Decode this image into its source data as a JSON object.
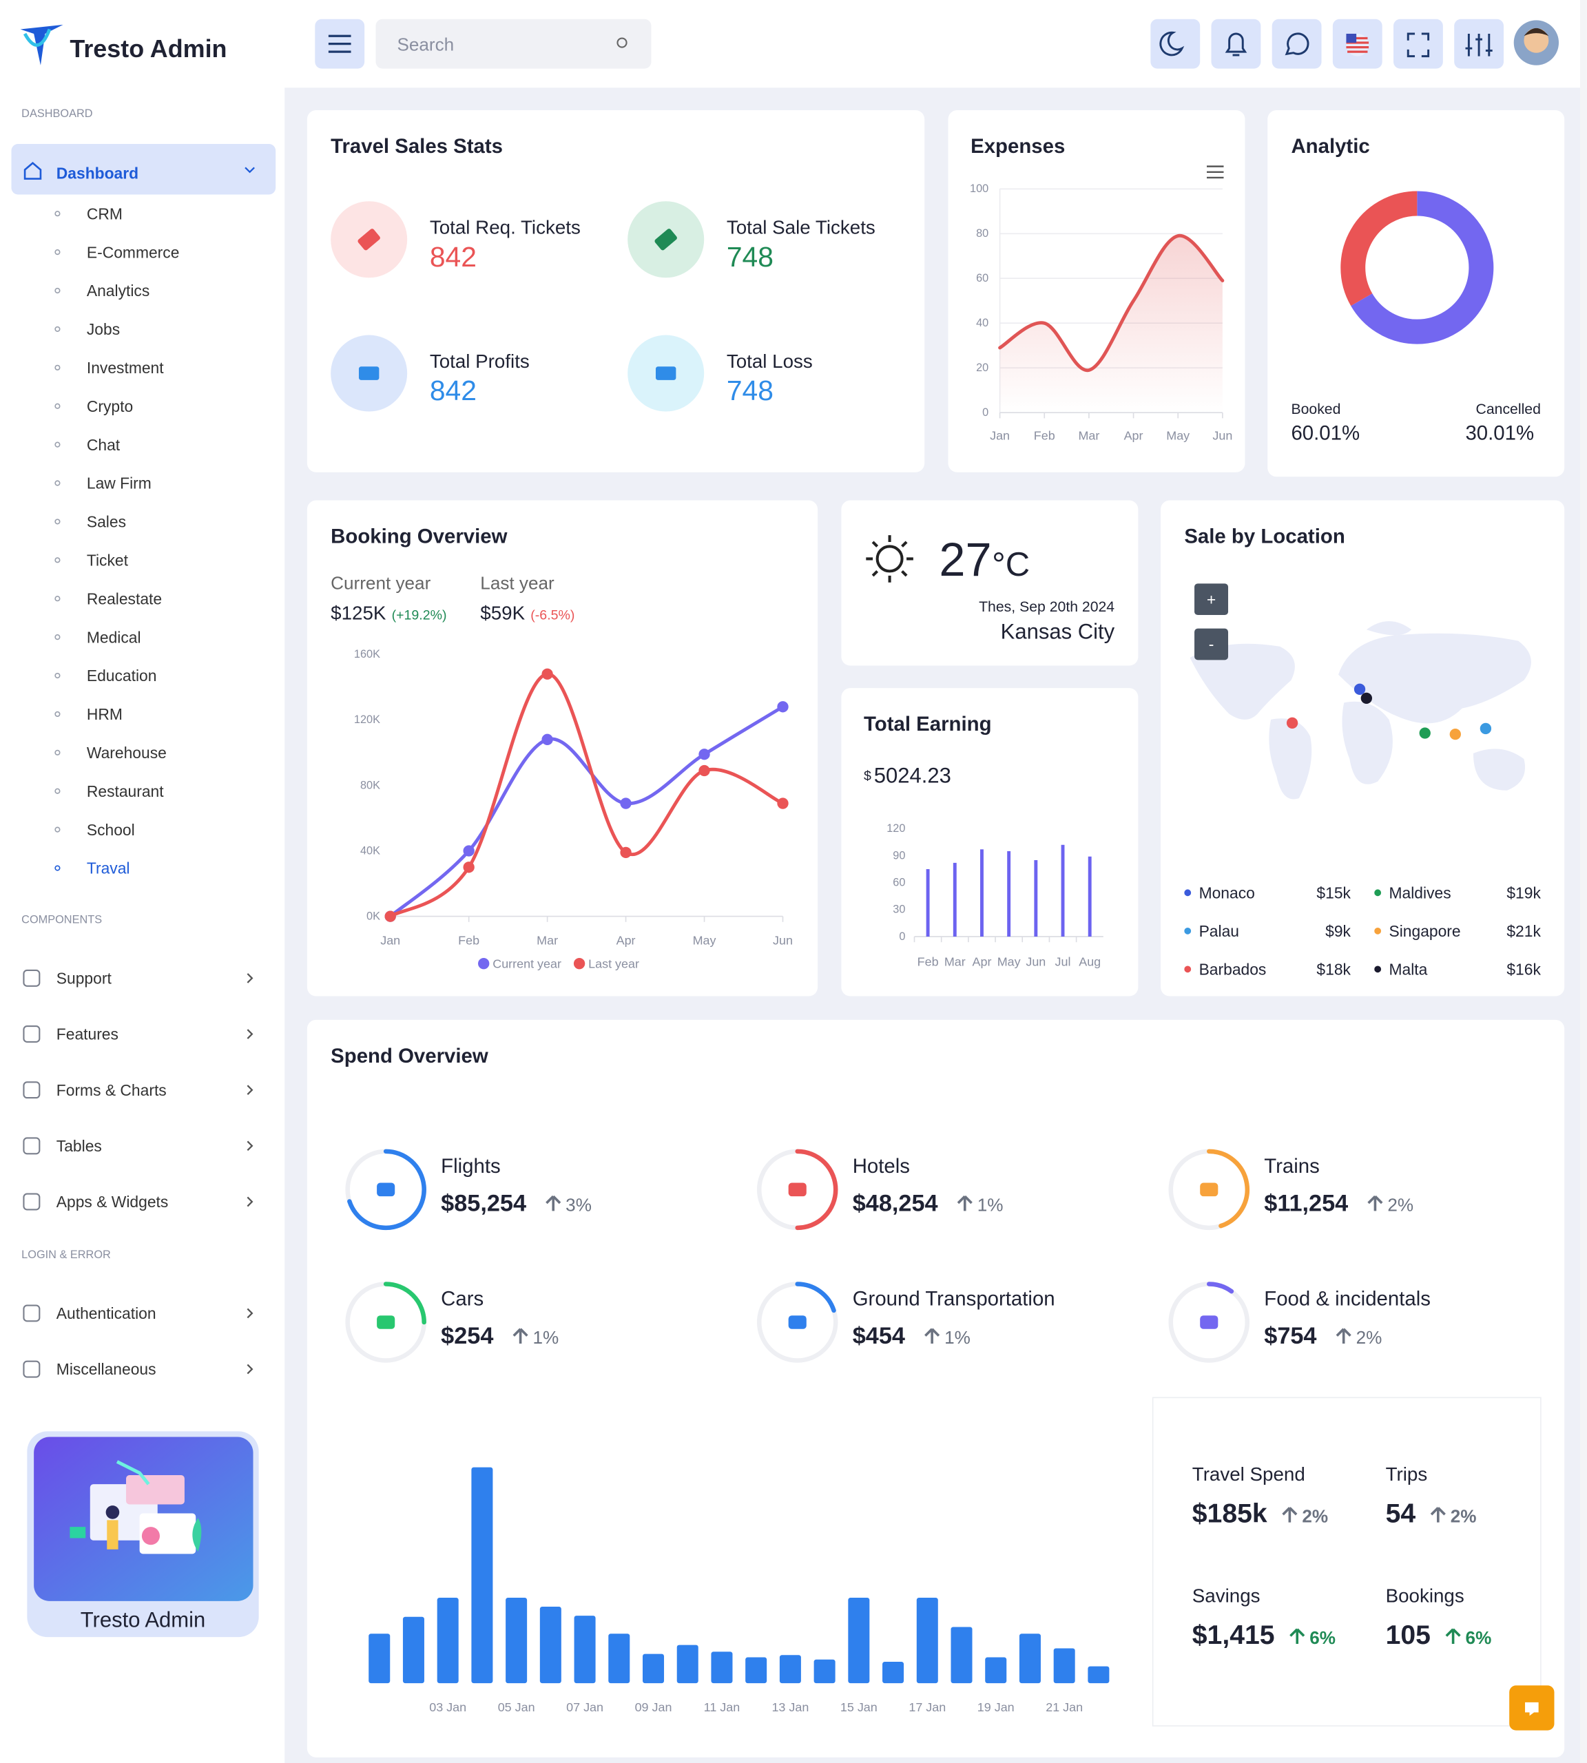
{
  "header": {
    "brand": "Tresto Admin",
    "search": "Search"
  },
  "sidebar": {
    "dashboard_heading": "DASHBOARD",
    "dashboard": "Dashboard",
    "dashboard_items": [
      "CRM",
      "E-Commerce",
      "Analytics",
      "Jobs",
      "Investment",
      "Crypto",
      "Chat",
      "Law Firm",
      "Sales",
      "Ticket",
      "Realestate",
      "Medical",
      "Education",
      "HRM",
      "Warehouse",
      "Restaurant",
      "School",
      "Traval"
    ],
    "components_heading": "COMPONENTS",
    "components": [
      "Support",
      "Features",
      "Forms & Charts",
      "Tables",
      "Apps & Widgets"
    ],
    "login_heading": "LOGIN & ERROR",
    "login_items": [
      "Authentication",
      "Miscellaneous"
    ],
    "promo": "Tresto Admin"
  },
  "travel_sales_stats": {
    "title": "Travel Sales Stats",
    "stats": [
      {
        "label": "Total Req. Tickets",
        "value": "842",
        "color": "#ea5455",
        "bg": "#fde4e4"
      },
      {
        "label": "Total Sale Tickets",
        "value": "748",
        "color": "#1f8a55",
        "bg": "#d8efe3"
      },
      {
        "label": "Total Profits",
        "value": "842",
        "color": "#2f8ce8",
        "bg": "#dbe6fb"
      },
      {
        "label": "Total Loss",
        "value": "748",
        "color": "#2f8ce8",
        "bg": "#daf3fb"
      }
    ]
  },
  "chart_data": [
    {
      "type": "line",
      "title": "Expenses",
      "categories": [
        "Jan",
        "Feb",
        "Mar",
        "Apr",
        "May",
        "Jun"
      ],
      "series": [
        {
          "name": null,
          "color": "#e05555",
          "values": [
            29,
            40,
            19,
            50,
            79,
            59
          ]
        }
      ],
      "ylim": [
        0,
        100
      ],
      "yticks": [
        0,
        20,
        40,
        60,
        80,
        100
      ],
      "grid": true
    },
    {
      "type": "pie",
      "title": "Analytic",
      "categories": [
        "Booked",
        "Cancelled"
      ],
      "values": [
        60.01,
        30.01
      ],
      "value_labels": [
        "60.01%",
        "30.01%"
      ],
      "colors": [
        "#7367f0",
        "#ea5455"
      ]
    },
    {
      "type": "line",
      "title": "Booking Overview",
      "summary": [
        {
          "value": "$125K",
          "change": "(+19.2%)",
          "change_color": "#1f8a55"
        },
        {
          "value": "$59K",
          "change": "(-6.5%)",
          "change_color": "#ea5455"
        }
      ],
      "categories": [
        "Jan",
        "Feb",
        "Mar",
        "Apr",
        "May",
        "Jun"
      ],
      "series": [
        {
          "name": "Current year",
          "color": "#7367f0",
          "values": [
            0,
            40000,
            108000,
            69000,
            99000,
            128000
          ]
        },
        {
          "name": "Last year",
          "color": "#ea5455",
          "values": [
            0,
            30000,
            148000,
            39000,
            89000,
            69000
          ]
        }
      ],
      "ylim": [
        0,
        160000
      ],
      "yticks": [
        {
          "value": 0,
          "label": "0K"
        },
        {
          "value": 40000,
          "label": "40K"
        },
        {
          "value": 80000,
          "label": "80K"
        },
        {
          "value": 120000,
          "label": "120K"
        },
        {
          "value": 160000,
          "label": "160K"
        }
      ],
      "grid": false,
      "legend": "bottom"
    },
    {
      "type": "bar",
      "title": "Total Earning",
      "currency": "$",
      "amount": "5024.23",
      "categories": [
        "Feb",
        "Mar",
        "Apr",
        "May",
        "Jun",
        "Jul",
        "Aug"
      ],
      "values": [
        75,
        82,
        97,
        95,
        85,
        102,
        89
      ],
      "color": "#6c63f0",
      "ylim": [
        0,
        120
      ],
      "yticks": [
        0,
        30,
        60,
        90,
        120
      ],
      "grid": false
    },
    {
      "type": "bar",
      "categories": [
        null,
        null,
        "03 Jan",
        null,
        "05 Jan",
        null,
        "07 Jan",
        null,
        "09 Jan",
        null,
        "11 Jan",
        null,
        "13 Jan",
        null,
        "15 Jan",
        null,
        "17 Jan",
        null,
        "19 Jan",
        null,
        "21 Jan",
        null
      ],
      "values": [
        44,
        59,
        76,
        192,
        76,
        68,
        60,
        44,
        26,
        34,
        28,
        23,
        25,
        21,
        76,
        19,
        76,
        50,
        23,
        44,
        31,
        15
      ],
      "color": "#2f80ed",
      "ylim": [
        0,
        200
      ],
      "grid": false
    }
  ],
  "weather": {
    "temperature": "27",
    "unit": "°C",
    "date": "Thes, Sep 20th 2024",
    "city": "Kansas City"
  },
  "sale_by_location": {
    "title": "Sale by Location",
    "zoom_in": "+",
    "zoom_out": "-",
    "locations": [
      {
        "name": "Monaco",
        "value": "$15k",
        "color": "#3b5bdb"
      },
      {
        "name": "Maldives",
        "value": "$19k",
        "color": "#1f9d55"
      },
      {
        "name": "Palau",
        "value": "$9k",
        "color": "#3b9ae1"
      },
      {
        "name": "Singapore",
        "value": "$21k",
        "color": "#f7a23b"
      },
      {
        "name": "Barbados",
        "value": "$18k",
        "color": "#ea5455"
      },
      {
        "name": "Malta",
        "value": "$16k",
        "color": "#1a1a2e"
      }
    ]
  },
  "spend_overview": {
    "title": "Spend Overview",
    "items": [
      {
        "label": "Flights",
        "value": "$85,254",
        "change": "3%",
        "color": "#2f80ed"
      },
      {
        "label": "Hotels",
        "value": "$48,254",
        "change": "1%",
        "color": "#ea5455"
      },
      {
        "label": "Trains",
        "value": "$11,254",
        "change": "2%",
        "color": "#f7a23b"
      },
      {
        "label": "Cars",
        "value": "$254",
        "change": "1%",
        "color": "#28c76f"
      },
      {
        "label": "Ground Transportation",
        "value": "$454",
        "change": "1%",
        "color": "#2f80ed"
      },
      {
        "label": "Food & incidentals",
        "value": "$754",
        "change": "2%",
        "color": "#7367f0"
      }
    ],
    "summary": [
      {
        "label": "Travel Spend",
        "value": "$185k",
        "change": "2%",
        "color": "#6b7280"
      },
      {
        "label": "Trips",
        "value": "54",
        "change": "2%",
        "color": "#6b7280"
      },
      {
        "label": "Savings",
        "value": "$1,415",
        "change": "6%",
        "color": "#1f8a55"
      },
      {
        "label": "Bookings",
        "value": "105",
        "change": "6%",
        "color": "#1f8a55"
      }
    ]
  }
}
